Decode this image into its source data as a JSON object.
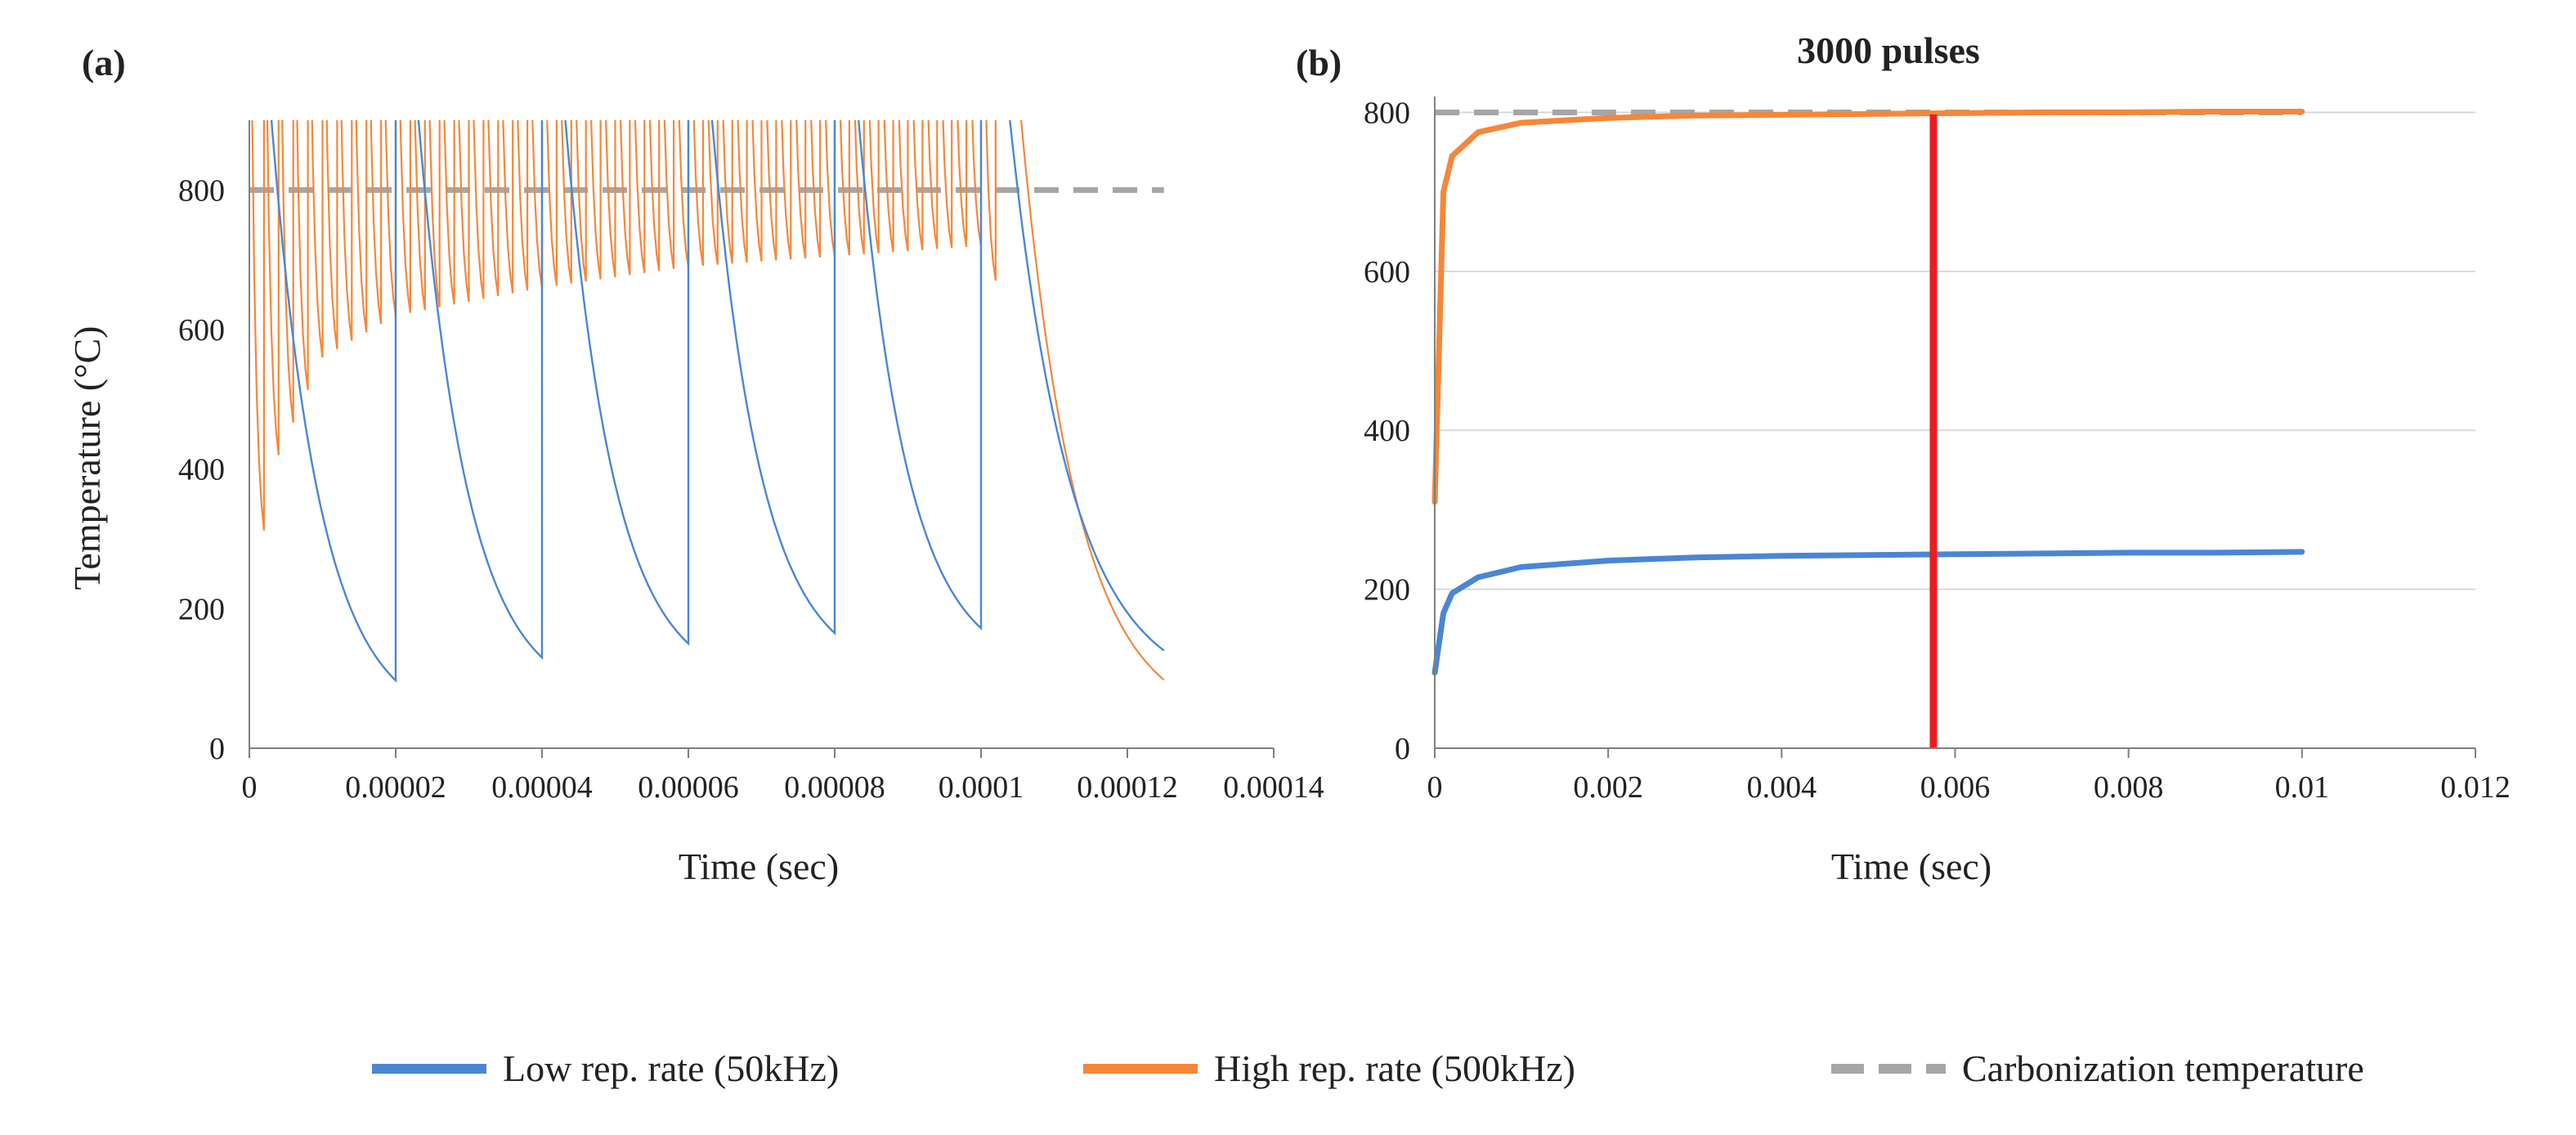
{
  "colors": {
    "low": "#4a86d4",
    "high": "#f5873a",
    "carbonization": "#a6a6a6",
    "marker": "#ee1c1c",
    "axis": "#7f7f7f",
    "grid": "#d9d9d9"
  },
  "legend": {
    "items": [
      {
        "label": "Low rep. rate (50kHz)",
        "color": "#4a86d4",
        "style": "solid"
      },
      {
        "label": "High rep. rate (500kHz)",
        "color": "#f5873a",
        "style": "solid"
      },
      {
        "label": "Carbonization temperature",
        "color": "#a6a6a6",
        "style": "dashed"
      }
    ],
    "placement": "bottom"
  },
  "chart_data": [
    {
      "panel": "(a)",
      "type": "line",
      "title": "",
      "xlabel": "Time (sec)",
      "ylabel": "Temperature (°C)",
      "xlim": [
        0,
        0.00014
      ],
      "ylim": [
        0,
        900
      ],
      "xticks": [
        "0",
        "0.00002",
        "0.00004",
        "0.00006",
        "0.00008",
        "0.0001",
        "0.00012",
        "0.00014"
      ],
      "yticks": [
        "0",
        "200",
        "400",
        "600",
        "800"
      ],
      "grid": false,
      "reference_line": {
        "name": "Carbonization temperature",
        "y": 800,
        "x_range": [
          0,
          0.000125
        ]
      },
      "series": [
        {
          "name": "Low rep. rate (50kHz)",
          "pulse_period": 2e-05,
          "pulse_times": [
            0,
            2e-05,
            4e-05,
            6e-05,
            8e-05,
            0.0001
          ],
          "troughs": [
            {
              "x": 2e-05,
              "y": 97
            },
            {
              "x": 4e-05,
              "y": 130
            },
            {
              "x": 6e-05,
              "y": 150
            },
            {
              "x": 8e-05,
              "y": 165
            },
            {
              "x": 0.0001,
              "y": 172
            },
            {
              "x": 0.000125,
              "y": 140
            }
          ]
        },
        {
          "name": "High rep. rate (500kHz)",
          "pulse_period": 2e-06,
          "pulse_range": [
            0,
            0.000102
          ],
          "troughs": [
            {
              "x": 2e-06,
              "y": 312
            },
            {
              "x": 4e-06,
              "y": 420
            },
            {
              "x": 1e-05,
              "y": 560
            },
            {
              "x": 2e-05,
              "y": 620
            },
            {
              "x": 4e-05,
              "y": 660
            },
            {
              "x": 6e-05,
              "y": 690
            },
            {
              "x": 8e-05,
              "y": 705
            },
            {
              "x": 0.0001,
              "y": 720
            },
            {
              "x": 0.000125,
              "y": 98
            }
          ]
        }
      ]
    },
    {
      "panel": "(b)",
      "type": "line",
      "title": "3000 pulses",
      "xlabel": "Time (sec)",
      "ylabel": "",
      "xlim": [
        0,
        0.012
      ],
      "ylim": [
        0,
        820
      ],
      "xticks": [
        "0",
        "0.002",
        "0.004",
        "0.006",
        "0.008",
        "0.01",
        "0.012"
      ],
      "yticks": [
        "0",
        "200",
        "400",
        "600",
        "800"
      ],
      "grid": true,
      "reference_line": {
        "name": "Carbonization temperature",
        "y": 800,
        "x_range": [
          0,
          0.01
        ]
      },
      "marker_line": {
        "x": 0.00575
      },
      "series": [
        {
          "name": "Low rep. rate (50kHz)",
          "x": [
            0,
            0.0001,
            0.0002,
            0.0005,
            0.001,
            0.002,
            0.003,
            0.004,
            0.005,
            0.006,
            0.007,
            0.008,
            0.009,
            0.01
          ],
          "y": [
            95,
            170,
            195,
            215,
            228,
            236,
            240,
            242,
            243,
            244,
            245,
            246,
            246,
            247
          ]
        },
        {
          "name": "High rep. rate (500kHz)",
          "x": [
            0,
            0.0001,
            0.0002,
            0.0005,
            0.001,
            0.002,
            0.003,
            0.004,
            0.005,
            0.006,
            0.007,
            0.008,
            0.009,
            0.01
          ],
          "y": [
            310,
            700,
            745,
            775,
            787,
            793,
            796,
            797,
            798,
            799,
            800,
            800,
            801,
            801
          ]
        }
      ]
    }
  ]
}
